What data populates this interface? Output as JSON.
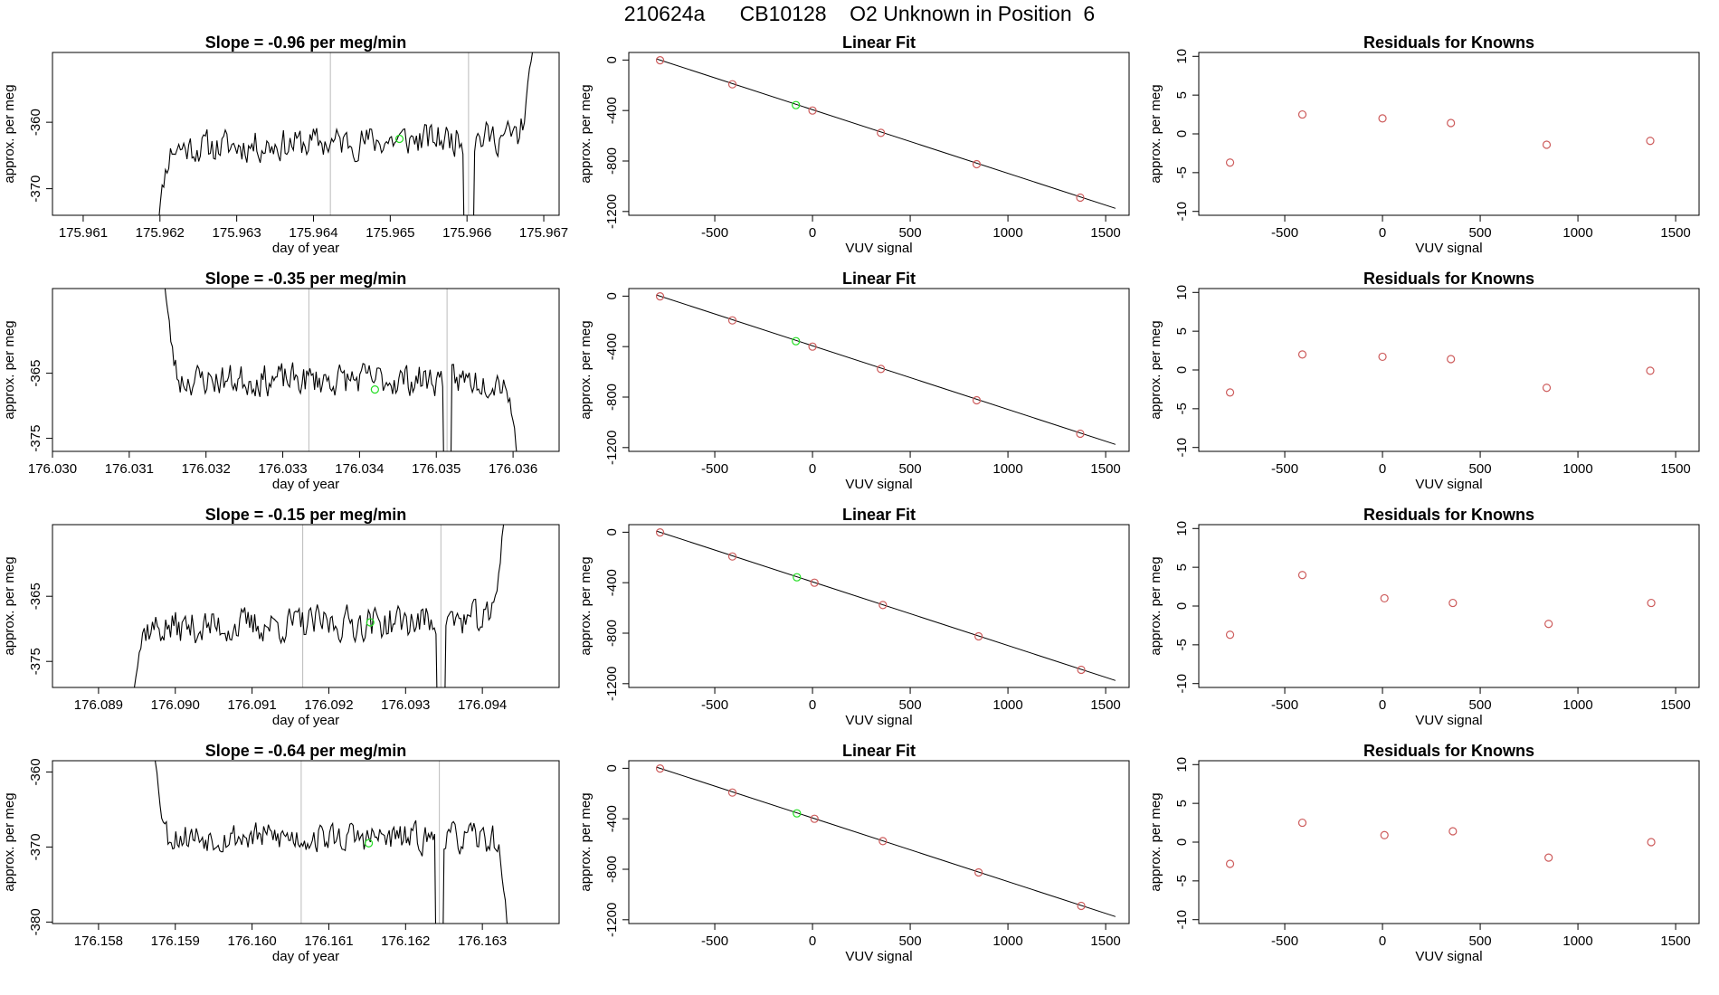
{
  "page": {
    "title": "210624a      CB10128    O2 Unknown in Position  6"
  },
  "labels": {
    "time_title_prefix": "Slope =  ",
    "time_title_suffix": "  per meg/min",
    "time_xlabel": "day of year",
    "time_ylabel": "approx. per meg",
    "fit_title": "Linear Fit",
    "fit_xlabel": "VUV signal",
    "fit_ylabel": "approx. per meg",
    "resid_title": "Residuals for Knowns",
    "resid_xlabel": "VUV signal",
    "resid_ylabel": "approx. per meg"
  },
  "colors": {
    "trace": "#000000",
    "known": "#cd5c5c",
    "unknown": "#22dd22",
    "marker_line": "#bbbbbb",
    "fit_line": "#000000"
  },
  "chart_data": [
    {
      "row": 1,
      "type": "line",
      "slope": "-0.96",
      "xlim": [
        175.9606,
        175.9672
      ],
      "ylim": [
        -374,
        -349.5
      ],
      "xticks": [
        "175.961",
        "175.962",
        "175.963",
        "175.964",
        "175.965",
        "175.966",
        "175.967"
      ],
      "yticks": [
        -370,
        -360
      ],
      "start": 175.96192,
      "end": 175.9669,
      "dips": [
        175.96602
      ],
      "vlines": [
        175.96422,
        175.96602
      ],
      "unknown_point": [
        175.96512,
        -362.5
      ],
      "seed": 11,
      "level_start": -364,
      "level_end": -362,
      "noise": 2.2,
      "head": "rise",
      "tail": "rise"
    },
    {
      "row": 2,
      "type": "line",
      "slope": "-0.35",
      "xlim": [
        176.03,
        176.0366
      ],
      "ylim": [
        -377,
        -352
      ],
      "xticks": [
        "176.030",
        "176.031",
        "176.032",
        "176.033",
        "176.034",
        "176.035",
        "176.036"
      ],
      "yticks": [
        -375,
        -365
      ],
      "start": 176.03142,
      "end": 176.0361,
      "dips": [
        176.03514
      ],
      "vlines": [
        176.03334,
        176.03514
      ],
      "unknown_point": [
        176.0342,
        -367.5
      ],
      "seed": 23,
      "level_start": -366,
      "level_end": -366,
      "noise": 2.2,
      "head": "fall",
      "tail": "fall"
    },
    {
      "row": 3,
      "type": "line",
      "slope": "-0.15",
      "xlim": [
        176.0884,
        176.095
      ],
      "ylim": [
        -379,
        -354
      ],
      "xticks": [
        "176.089",
        "176.090",
        "176.091",
        "176.092",
        "176.093",
        "176.094"
      ],
      "yticks": [
        -375,
        -365
      ],
      "start": 176.08938,
      "end": 176.09432,
      "dips": [
        176.09346
      ],
      "vlines": [
        176.09166,
        176.09346
      ],
      "unknown_point": [
        176.09254,
        -369.0
      ],
      "seed": 37,
      "level_start": -370,
      "level_end": -368.5,
      "noise": 2.4,
      "head": "rise",
      "tail": "rise"
    },
    {
      "row": 4,
      "type": "line",
      "slope": "-0.64",
      "xlim": [
        176.1574,
        176.164
      ],
      "ylim": [
        -380.2,
        -358.5
      ],
      "xticks": [
        "176.158",
        "176.159",
        "176.160",
        "176.161",
        "176.162",
        "176.163"
      ],
      "yticks": [
        -380,
        -370,
        -360
      ],
      "start": 176.15868,
      "end": 176.16338,
      "dips": [
        176.16244
      ],
      "vlines": [
        176.16064,
        176.16244
      ],
      "unknown_point": [
        176.16152,
        -369.5
      ],
      "seed": 53,
      "level_start": -368.5,
      "level_end": -369,
      "noise": 1.8,
      "head": "fall",
      "tail": "fall"
    }
  ],
  "fit_data": [
    {
      "row": 1,
      "type": "scatter",
      "xlim": [
        -940,
        1620
      ],
      "ylim": [
        -1230,
        60
      ],
      "xticks": [
        -500,
        0,
        500,
        1000,
        1500
      ],
      "yticks": [
        0,
        -400,
        -800,
        -1200
      ],
      "line": [
        [
          -800,
          10
        ],
        [
          1550,
          -1175
        ]
      ],
      "knowns": [
        [
          -780,
          -2
        ],
        [
          -410,
          -192
        ],
        [
          0,
          -400
        ],
        [
          350,
          -577
        ],
        [
          840,
          -825
        ],
        [
          1370,
          -1090
        ]
      ],
      "unknown": [
        -85,
        -357
      ]
    },
    {
      "row": 2,
      "type": "scatter",
      "xlim": [
        -940,
        1620
      ],
      "ylim": [
        -1230,
        60
      ],
      "xticks": [
        -500,
        0,
        500,
        1000,
        1500
      ],
      "yticks": [
        0,
        -400,
        -800,
        -1200
      ],
      "line": [
        [
          -800,
          10
        ],
        [
          1550,
          -1175
        ]
      ],
      "knowns": [
        [
          -780,
          -2
        ],
        [
          -410,
          -192
        ],
        [
          0,
          -400
        ],
        [
          350,
          -577
        ],
        [
          840,
          -825
        ],
        [
          1370,
          -1090
        ]
      ],
      "unknown": [
        -85,
        -357
      ]
    },
    {
      "row": 3,
      "type": "scatter",
      "xlim": [
        -940,
        1620
      ],
      "ylim": [
        -1230,
        60
      ],
      "xticks": [
        -500,
        0,
        500,
        1000,
        1500
      ],
      "yticks": [
        0,
        -400,
        -800,
        -1200
      ],
      "line": [
        [
          -800,
          10
        ],
        [
          1550,
          -1175
        ]
      ],
      "knowns": [
        [
          -780,
          -2
        ],
        [
          -410,
          -192
        ],
        [
          10,
          -400
        ],
        [
          360,
          -577
        ],
        [
          850,
          -825
        ],
        [
          1375,
          -1090
        ]
      ],
      "unknown": [
        -80,
        -357
      ]
    },
    {
      "row": 4,
      "type": "scatter",
      "xlim": [
        -940,
        1620
      ],
      "ylim": [
        -1230,
        60
      ],
      "xticks": [
        -500,
        0,
        500,
        1000,
        1500
      ],
      "yticks": [
        0,
        -400,
        -800,
        -1200
      ],
      "line": [
        [
          -800,
          10
        ],
        [
          1550,
          -1175
        ]
      ],
      "knowns": [
        [
          -780,
          -2
        ],
        [
          -410,
          -192
        ],
        [
          10,
          -400
        ],
        [
          360,
          -577
        ],
        [
          850,
          -825
        ],
        [
          1375,
          -1090
        ]
      ],
      "unknown": [
        -80,
        -357
      ]
    }
  ],
  "resid_data": [
    {
      "row": 1,
      "type": "scatter",
      "xlim": [
        -940,
        1620
      ],
      "ylim": [
        -10.5,
        10.5
      ],
      "xticks": [
        -500,
        0,
        500,
        1000,
        1500
      ],
      "yticks": [
        -10,
        -5,
        0,
        5,
        10
      ],
      "points": [
        [
          -780,
          -3.7
        ],
        [
          -410,
          2.5
        ],
        [
          0,
          2.0
        ],
        [
          350,
          1.4
        ],
        [
          840,
          -1.4
        ],
        [
          1370,
          -0.9
        ]
      ]
    },
    {
      "row": 2,
      "type": "scatter",
      "xlim": [
        -940,
        1620
      ],
      "ylim": [
        -10.5,
        10.5
      ],
      "xticks": [
        -500,
        0,
        500,
        1000,
        1500
      ],
      "yticks": [
        -10,
        -5,
        0,
        5,
        10
      ],
      "points": [
        [
          -780,
          -2.9
        ],
        [
          -410,
          2.0
        ],
        [
          0,
          1.7
        ],
        [
          350,
          1.4
        ],
        [
          840,
          -2.3
        ],
        [
          1370,
          -0.1
        ]
      ]
    },
    {
      "row": 3,
      "type": "scatter",
      "xlim": [
        -940,
        1620
      ],
      "ylim": [
        -10.5,
        10.5
      ],
      "xticks": [
        -500,
        0,
        500,
        1000,
        1500
      ],
      "yticks": [
        -10,
        -5,
        0,
        5,
        10
      ],
      "points": [
        [
          -780,
          -3.7
        ],
        [
          -410,
          4.0
        ],
        [
          10,
          1.0
        ],
        [
          360,
          0.4
        ],
        [
          850,
          -2.3
        ],
        [
          1375,
          0.4
        ]
      ]
    },
    {
      "row": 4,
      "type": "scatter",
      "xlim": [
        -940,
        1620
      ],
      "ylim": [
        -10.5,
        10.5
      ],
      "xticks": [
        -500,
        0,
        500,
        1000,
        1500
      ],
      "yticks": [
        -10,
        -5,
        0,
        5,
        10
      ],
      "points": [
        [
          -780,
          -2.8
        ],
        [
          -410,
          2.5
        ],
        [
          10,
          0.9
        ],
        [
          360,
          1.4
        ],
        [
          850,
          -2.0
        ],
        [
          1375,
          0.0
        ]
      ]
    }
  ]
}
